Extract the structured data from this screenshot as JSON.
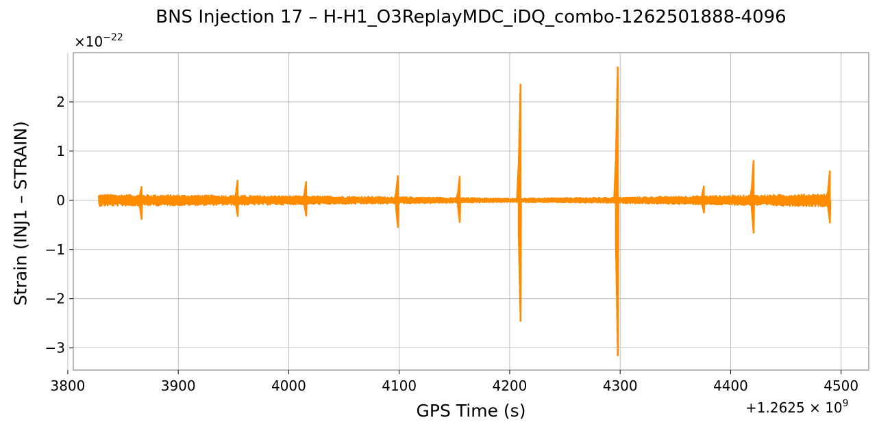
{
  "chart_data": {
    "type": "line",
    "title": "BNS Injection 17 – H-H1_O3ReplayMDC_iDQ_combo-1262501888-4096",
    "xlabel": "GPS Time (s)",
    "ylabel": "Strain (INJ1 – STRAIN)",
    "x_offset_label": {
      "prefix": "+1.2625 × 10",
      "exponent": "9"
    },
    "y_scale_label": {
      "prefix": "×10",
      "exponent": "−22"
    },
    "xlim": [
      3805,
      4525
    ],
    "ylim": [
      -3.45,
      3.0
    ],
    "xticks": [
      3800,
      3900,
      4000,
      4100,
      4200,
      4300,
      4400,
      4500
    ],
    "yticks": [
      -3,
      -2,
      -1,
      0,
      1,
      2
    ],
    "ytick_labels": [
      "−3",
      "−2",
      "−1",
      "0",
      "1",
      "2"
    ],
    "grid": true,
    "color": "#ff8c00",
    "series": [
      {
        "x_range": [
          3828,
          4490
        ],
        "noise_envelope": [
          {
            "x": 3828,
            "hi": 0.12,
            "lo": -0.12
          },
          {
            "x": 4000,
            "hi": 0.09,
            "lo": -0.09
          },
          {
            "x": 4100,
            "hi": 0.07,
            "lo": -0.07
          },
          {
            "x": 4200,
            "hi": 0.04,
            "lo": -0.04
          },
          {
            "x": 4300,
            "hi": 0.06,
            "lo": -0.06
          },
          {
            "x": 4400,
            "hi": 0.1,
            "lo": -0.1
          },
          {
            "x": 4490,
            "hi": 0.13,
            "lo": -0.13
          }
        ],
        "spikes": [
          {
            "x": 3866,
            "hi": 0.27,
            "lo": -0.38
          },
          {
            "x": 3953,
            "hi": 0.4,
            "lo": -0.32
          },
          {
            "x": 4015,
            "hi": 0.37,
            "lo": -0.31
          },
          {
            "x": 4098,
            "hi": 0.49,
            "lo": -0.54
          },
          {
            "x": 4154,
            "hi": 0.48,
            "lo": -0.44
          },
          {
            "x": 4209,
            "hi": 2.35,
            "lo": -2.45
          },
          {
            "x": 4297,
            "hi": 2.7,
            "lo": -3.15
          },
          {
            "x": 4375,
            "hi": 0.28,
            "lo": -0.25
          },
          {
            "x": 4420,
            "hi": 0.8,
            "lo": -0.66
          },
          {
            "x": 4489,
            "hi": 0.59,
            "lo": -0.45
          }
        ]
      }
    ]
  }
}
